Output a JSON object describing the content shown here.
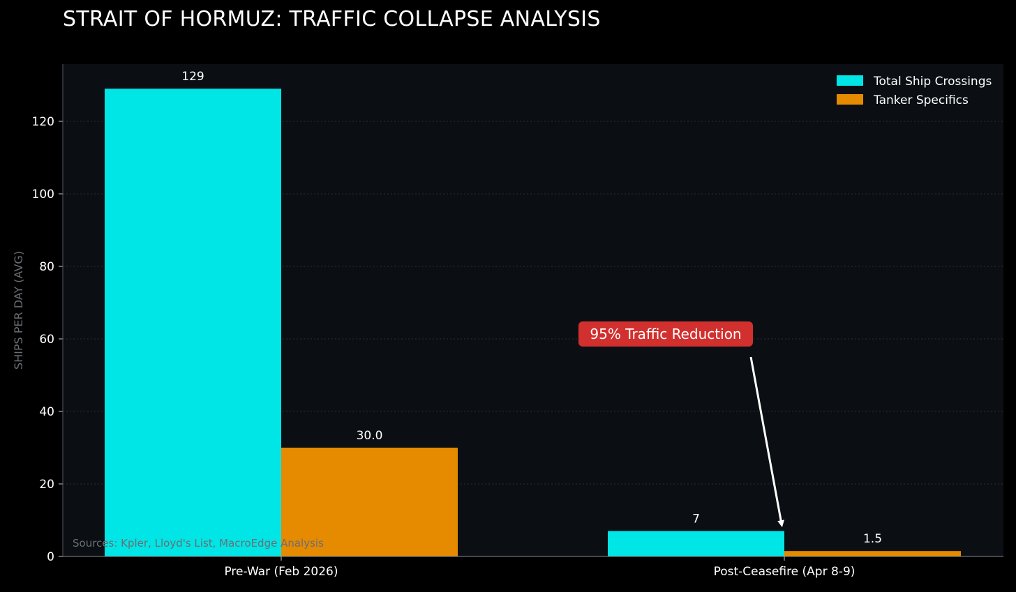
{
  "title": "STRAIT OF HORMUZ: TRAFFIC COLLAPSE ANALYSIS",
  "colors": {
    "page_background": "#000000",
    "plot_background": "#0b0f13",
    "total_series": "#00e5e5",
    "tanker_series": "#e68a00",
    "annotation_box": "#d1302e",
    "text": "#ffffff",
    "muted_text": "#6b6f73",
    "grid": "#2a2f34"
  },
  "chart_data": {
    "type": "bar",
    "categories": [
      "Pre-War (Feb 2026)",
      "Post-Ceasefire (Apr 8-9)"
    ],
    "series": [
      {
        "name": "Total Ship Crossings",
        "values": [
          129,
          7
        ],
        "value_labels": [
          "129",
          "7"
        ],
        "color": "#00e5e5"
      },
      {
        "name": "Tanker Specifics",
        "values": [
          30.0,
          1.5
        ],
        "value_labels": [
          "30.0",
          "1.5"
        ],
        "color": "#e68a00"
      }
    ],
    "title": "STRAIT OF HORMUZ: TRAFFIC COLLAPSE ANALYSIS",
    "xlabel": "",
    "ylabel": "SHIPS PER DAY (AVG)",
    "ylim": [
      0,
      135
    ],
    "yticks": [
      0,
      20,
      40,
      60,
      80,
      100,
      120
    ],
    "grid": "horizontal dotted",
    "legend_position": "top-right",
    "annotation": {
      "text": "95% Traffic Reduction",
      "arrow_target": {
        "category": "Post-Ceasefire (Apr 8-9)",
        "value": 9
      }
    },
    "source_note": "Sources: Kpler, Lloyd's List, MacroEdge Analysis"
  }
}
